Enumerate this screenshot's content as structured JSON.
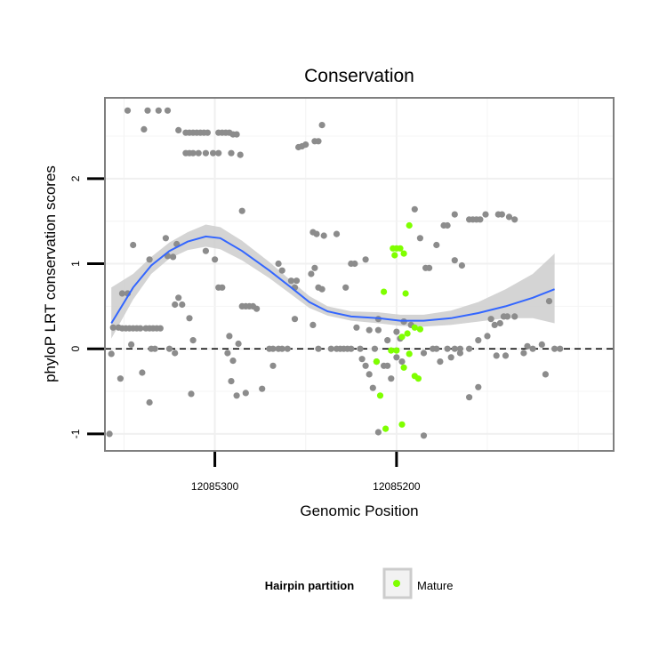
{
  "chart_data": {
    "type": "scatter",
    "title": "Conservation",
    "xlabel": "Genomic Position",
    "ylabel": "phyloP LRT conservation scores",
    "x_reversed": true,
    "xlim": [
      12085360.5,
      12085080.5
    ],
    "ylim": [
      -1.2,
      2.95
    ],
    "x_ticks": [
      12085300,
      12085200
    ],
    "x_tick_labels": [
      "12085300",
      "12085200"
    ],
    "y_ticks": [
      -1,
      0,
      1,
      2
    ],
    "y_tick_labels": [
      "-1",
      "0",
      "1",
      "2"
    ],
    "reference_line": {
      "y": 0,
      "style": "dashed"
    },
    "grid": true,
    "legend": {
      "title": "Hairpin partition",
      "position": "bottom",
      "entries": [
        {
          "label": "Mature",
          "color": "#7fff00"
        }
      ]
    },
    "colors": {
      "points": "#8c8c8c",
      "mature": "#7fff00",
      "smooth": "#3366ff",
      "band": "#cccccc"
    },
    "series": [
      {
        "name": "",
        "color": "#8c8c8c",
        "points": [
          [
            12085348,
            2.8
          ],
          [
            12085337,
            2.8
          ],
          [
            12085331,
            2.8
          ],
          [
            12085326,
            2.8
          ],
          [
            12085339,
            2.58
          ],
          [
            12085320,
            2.57
          ],
          [
            12085316,
            2.54
          ],
          [
            12085314,
            2.54
          ],
          [
            12085312,
            2.54
          ],
          [
            12085310,
            2.54
          ],
          [
            12085308,
            2.54
          ],
          [
            12085306,
            2.54
          ],
          [
            12085304,
            2.54
          ],
          [
            12085298,
            2.54
          ],
          [
            12085296,
            2.54
          ],
          [
            12085294,
            2.54
          ],
          [
            12085292,
            2.54
          ],
          [
            12085290,
            2.52
          ],
          [
            12085288,
            2.52
          ],
          [
            12085316,
            2.3
          ],
          [
            12085314,
            2.3
          ],
          [
            12085312,
            2.3
          ],
          [
            12085309,
            2.3
          ],
          [
            12085305,
            2.3
          ],
          [
            12085301,
            2.3
          ],
          [
            12085298,
            2.3
          ],
          [
            12085291,
            2.3
          ],
          [
            12085286,
            2.28
          ],
          [
            12085254,
            2.37
          ],
          [
            12085252,
            2.38
          ],
          [
            12085250,
            2.4
          ],
          [
            12085245,
            2.44
          ],
          [
            12085243,
            2.44
          ],
          [
            12085241,
            2.63
          ],
          [
            12085285,
            1.62
          ],
          [
            12085246,
            1.37
          ],
          [
            12085244,
            1.35
          ],
          [
            12085240,
            1.33
          ],
          [
            12085233,
            1.35
          ],
          [
            12085190,
            1.64
          ],
          [
            12085168,
            1.58
          ],
          [
            12085160,
            1.52
          ],
          [
            12085158,
            1.52
          ],
          [
            12085156,
            1.52
          ],
          [
            12085154,
            1.52
          ],
          [
            12085151,
            1.58
          ],
          [
            12085144,
            1.58
          ],
          [
            12085142,
            1.58
          ],
          [
            12085138,
            1.55
          ],
          [
            12085135,
            1.52
          ],
          [
            12085174,
            1.45
          ],
          [
            12085172,
            1.45
          ],
          [
            12085187,
            1.3
          ],
          [
            12085178,
            1.22
          ],
          [
            12085223,
            1.0
          ],
          [
            12085225,
            1.0
          ],
          [
            12085217,
            1.05
          ],
          [
            12085184,
            0.95
          ],
          [
            12085182,
            0.95
          ],
          [
            12085168,
            1.04
          ],
          [
            12085164,
            0.98
          ],
          [
            12085327,
            1.3
          ],
          [
            12085321,
            1.23
          ],
          [
            12085305,
            1.15
          ],
          [
            12085300,
            1.05
          ],
          [
            12085326,
            1.09
          ],
          [
            12085323,
            1.08
          ],
          [
            12085336,
            1.05
          ],
          [
            12085345,
            1.22
          ],
          [
            12085298,
            0.72
          ],
          [
            12085296,
            0.72
          ],
          [
            12085265,
            1.0
          ],
          [
            12085263,
            0.92
          ],
          [
            12085258,
            0.8
          ],
          [
            12085256,
            0.72
          ],
          [
            12085255,
            0.8
          ],
          [
            12085247,
            0.88
          ],
          [
            12085243,
            0.72
          ],
          [
            12085241,
            0.7
          ],
          [
            12085228,
            0.72
          ],
          [
            12085245,
            0.95
          ],
          [
            12085351,
            0.65
          ],
          [
            12085348,
            0.65
          ],
          [
            12085322,
            0.52
          ],
          [
            12085320,
            0.6
          ],
          [
            12085318,
            0.52
          ],
          [
            12085314,
            0.36
          ],
          [
            12085285,
            0.5
          ],
          [
            12085283,
            0.5
          ],
          [
            12085281,
            0.5
          ],
          [
            12085279,
            0.5
          ],
          [
            12085277,
            0.47
          ],
          [
            12085356,
            0.25
          ],
          [
            12085353,
            0.25
          ],
          [
            12085351,
            0.24
          ],
          [
            12085349,
            0.24
          ],
          [
            12085347,
            0.24
          ],
          [
            12085345,
            0.24
          ],
          [
            12085343,
            0.24
          ],
          [
            12085341,
            0.24
          ],
          [
            12085338,
            0.24
          ],
          [
            12085336,
            0.24
          ],
          [
            12085334,
            0.24
          ],
          [
            12085332,
            0.24
          ],
          [
            12085330,
            0.24
          ],
          [
            12085346,
            0.05
          ],
          [
            12085335,
            0.0
          ],
          [
            12085333,
            0.0
          ],
          [
            12085325,
            0.0
          ],
          [
            12085322,
            -0.05
          ],
          [
            12085312,
            0.1
          ],
          [
            12085292,
            0.15
          ],
          [
            12085287,
            0.06
          ],
          [
            12085270,
            0.0
          ],
          [
            12085268,
            0.0
          ],
          [
            12085265,
            0.0
          ],
          [
            12085263,
            0.0
          ],
          [
            12085260,
            0.0
          ],
          [
            12085256,
            0.35
          ],
          [
            12085246,
            0.28
          ],
          [
            12085243,
            0.0
          ],
          [
            12085236,
            0.0
          ],
          [
            12085233,
            0.0
          ],
          [
            12085231,
            0.0
          ],
          [
            12085229,
            0.0
          ],
          [
            12085227,
            0.0
          ],
          [
            12085225,
            0.0
          ],
          [
            12085222,
            0.25
          ],
          [
            12085220,
            0.0
          ],
          [
            12085215,
            0.22
          ],
          [
            12085212,
            0.0
          ],
          [
            12085210,
            0.22
          ],
          [
            12085205,
            0.1
          ],
          [
            12085198,
            0.12
          ],
          [
            12085196,
            0.32
          ],
          [
            12085192,
            0.28
          ],
          [
            12085180,
            0.0
          ],
          [
            12085178,
            0.0
          ],
          [
            12085172,
            0.0
          ],
          [
            12085168,
            0.0
          ],
          [
            12085165,
            0.0
          ],
          [
            12085160,
            0.0
          ],
          [
            12085155,
            0.1
          ],
          [
            12085150,
            0.15
          ],
          [
            12085148,
            0.35
          ],
          [
            12085146,
            0.28
          ],
          [
            12085143,
            0.3
          ],
          [
            12085141,
            0.38
          ],
          [
            12085139,
            0.38
          ],
          [
            12085135,
            0.38
          ],
          [
            12085128,
            0.03
          ],
          [
            12085125,
            0.0
          ],
          [
            12085120,
            0.05
          ],
          [
            12085113,
            0.0
          ],
          [
            12085116,
            0.56
          ],
          [
            12085110,
            0.0
          ],
          [
            12085357,
            -0.06
          ],
          [
            12085352,
            -0.35
          ],
          [
            12085340,
            -0.28
          ],
          [
            12085336,
            -0.63
          ],
          [
            12085293,
            -0.05
          ],
          [
            12085291,
            -0.38
          ],
          [
            12085290,
            -0.14
          ],
          [
            12085288,
            -0.55
          ],
          [
            12085283,
            -0.52
          ],
          [
            12085274,
            -0.47
          ],
          [
            12085268,
            -0.2
          ],
          [
            12085219,
            -0.12
          ],
          [
            12085217,
            -0.2
          ],
          [
            12085215,
            -0.3
          ],
          [
            12085213,
            -0.46
          ],
          [
            12085211,
            -0.15
          ],
          [
            12085207,
            -0.2
          ],
          [
            12085205,
            -0.2
          ],
          [
            12085203,
            -0.35
          ],
          [
            12085200,
            -0.1
          ],
          [
            12085197,
            -0.15
          ],
          [
            12085185,
            -0.05
          ],
          [
            12085176,
            -0.15
          ],
          [
            12085170,
            -0.1
          ],
          [
            12085165,
            -0.05
          ],
          [
            12085160,
            -0.57
          ],
          [
            12085155,
            -0.45
          ],
          [
            12085145,
            -0.08
          ],
          [
            12085140,
            -0.08
          ],
          [
            12085130,
            -0.05
          ],
          [
            12085118,
            -0.3
          ],
          [
            12085313,
            -0.53
          ],
          [
            12085210,
            -0.98
          ],
          [
            12085185,
            -1.02
          ],
          [
            12085358,
            -1.0
          ],
          [
            12085210,
            0.35
          ],
          [
            12085200,
            0.2
          ],
          [
            12085196,
            0.32
          ]
        ]
      },
      {
        "name": "Mature",
        "color": "#7fff00",
        "points": [
          [
            12085193,
            1.45
          ],
          [
            12085202,
            1.18
          ],
          [
            12085200,
            1.18
          ],
          [
            12085198,
            1.18
          ],
          [
            12085196,
            1.12
          ],
          [
            12085201,
            1.1
          ],
          [
            12085207,
            0.67
          ],
          [
            12085195,
            0.65
          ],
          [
            12085190,
            0.25
          ],
          [
            12085187,
            0.23
          ],
          [
            12085194,
            0.18
          ],
          [
            12085197,
            0.14
          ],
          [
            12085203,
            -0.02
          ],
          [
            12085200,
            -0.02
          ],
          [
            12085196,
            -0.22
          ],
          [
            12085193,
            -0.06
          ],
          [
            12085190,
            -0.32
          ],
          [
            12085188,
            -0.35
          ],
          [
            12085209,
            -0.55
          ],
          [
            12085206,
            -0.94
          ],
          [
            12085197,
            -0.89
          ],
          [
            12085211,
            -0.15
          ]
        ]
      }
    ],
    "smooth": {
      "method": "loess",
      "color": "#3366ff",
      "x": [
        12085357,
        12085345,
        12085335,
        12085325,
        12085315,
        12085305,
        12085297,
        12085285,
        12085270,
        12085258,
        12085248,
        12085238,
        12085225,
        12085210,
        12085198,
        12085185,
        12085170,
        12085155,
        12085140,
        12085125,
        12085113
      ],
      "y": [
        0.3,
        0.72,
        0.98,
        1.15,
        1.26,
        1.32,
        1.3,
        1.15,
        0.92,
        0.72,
        0.55,
        0.44,
        0.38,
        0.36,
        0.33,
        0.33,
        0.36,
        0.42,
        0.5,
        0.6,
        0.7
      ],
      "lower": [
        0.12,
        0.58,
        0.88,
        1.06,
        1.16,
        1.2,
        1.17,
        1.04,
        0.83,
        0.64,
        0.48,
        0.39,
        0.33,
        0.3,
        0.27,
        0.26,
        0.28,
        0.32,
        0.36,
        0.36,
        0.3
      ],
      "upper": [
        0.72,
        0.88,
        1.08,
        1.25,
        1.37,
        1.46,
        1.43,
        1.27,
        1.02,
        0.8,
        0.62,
        0.5,
        0.44,
        0.43,
        0.4,
        0.4,
        0.45,
        0.55,
        0.7,
        0.88,
        1.12
      ]
    }
  }
}
